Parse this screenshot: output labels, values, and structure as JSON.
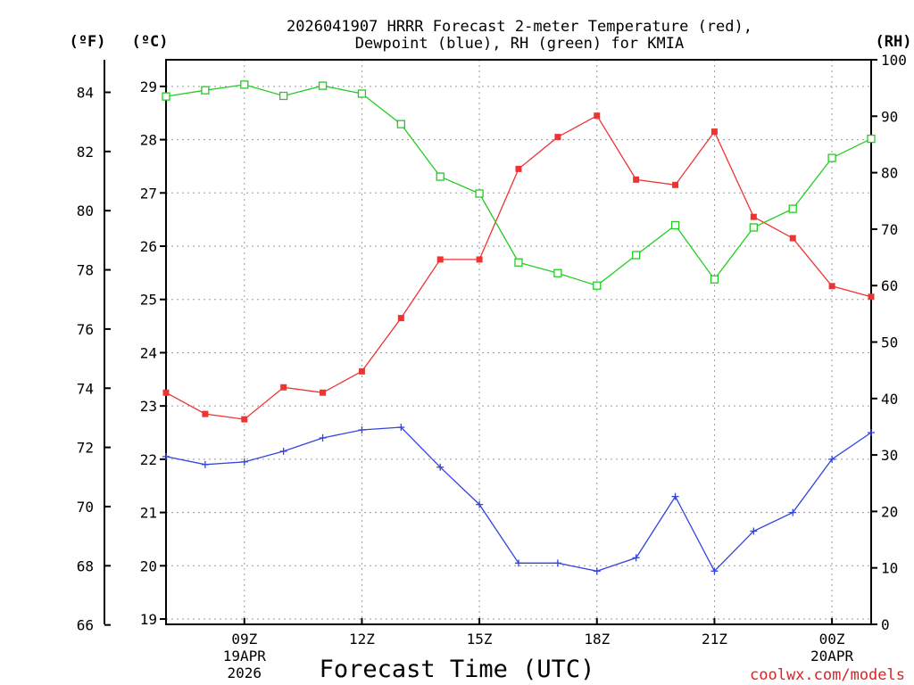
{
  "chart_data": {
    "type": "line",
    "title_line1": "2026041907 HRRR Forecast 2-meter Temperature (red),",
    "title_line2": "Dewpoint (blue), RH (green) for KMIA",
    "xlabel": "Forecast Time (UTC)",
    "credit": "coolwx.com/models",
    "unit_f": "(ºF)",
    "unit_c": "(ºC)",
    "unit_rh": "(RH)",
    "x_hours": [
      7,
      8,
      9,
      10,
      11,
      12,
      13,
      14,
      15,
      16,
      17,
      18,
      19,
      20,
      21,
      22,
      23,
      24,
      25
    ],
    "xlim": [
      7,
      25
    ],
    "x_ticks": [
      {
        "hour": 9,
        "lines": [
          "09Z",
          "19APR",
          "2026"
        ]
      },
      {
        "hour": 12,
        "lines": [
          "12Z"
        ]
      },
      {
        "hour": 15,
        "lines": [
          "15Z"
        ]
      },
      {
        "hour": 18,
        "lines": [
          "18Z"
        ]
      },
      {
        "hour": 21,
        "lines": [
          "21Z"
        ]
      },
      {
        "hour": 24,
        "lines": [
          "00Z",
          "20APR"
        ]
      }
    ],
    "celsius_axis": {
      "min": 18.9,
      "max": 29.5,
      "ticks": [
        "19",
        "20",
        "21",
        "22",
        "23",
        "24",
        "25",
        "26",
        "27",
        "28",
        "29"
      ]
    },
    "fahrenheit_axis": {
      "ticks": [
        "66",
        "68",
        "70",
        "72",
        "74",
        "76",
        "78",
        "80",
        "82",
        "84"
      ]
    },
    "rh_axis": {
      "min": 0,
      "max": 100,
      "ticks": [
        "0",
        "10",
        "20",
        "30",
        "40",
        "50",
        "60",
        "70",
        "80",
        "90",
        "100"
      ]
    },
    "series": [
      {
        "name": "Temperature",
        "unit": "C",
        "color": "#ee3333",
        "marker": "filled-square",
        "values": [
          23.25,
          22.85,
          22.75,
          23.35,
          23.25,
          23.65,
          24.65,
          25.75,
          25.75,
          27.45,
          28.05,
          28.45,
          27.25,
          27.15,
          28.15,
          26.55,
          26.15,
          25.25,
          25.05
        ]
      },
      {
        "name": "Dewpoint",
        "unit": "C",
        "color": "#3344dd",
        "marker": "plus",
        "values": [
          22.05,
          21.9,
          21.95,
          22.15,
          22.4,
          22.55,
          22.6,
          21.85,
          21.15,
          20.05,
          20.05,
          19.9,
          20.15,
          21.3,
          19.9,
          20.65,
          21.0,
          22.0,
          22.5
        ]
      },
      {
        "name": "RH",
        "unit": "%",
        "color": "#22cc22",
        "marker": "open-square",
        "values": [
          93.5,
          94.6,
          95.6,
          93.6,
          95.4,
          94.0,
          88.6,
          79.3,
          76.3,
          64.1,
          62.2,
          60.0,
          65.4,
          70.7,
          61.1,
          70.3,
          73.6,
          82.6,
          86.0
        ]
      }
    ]
  }
}
